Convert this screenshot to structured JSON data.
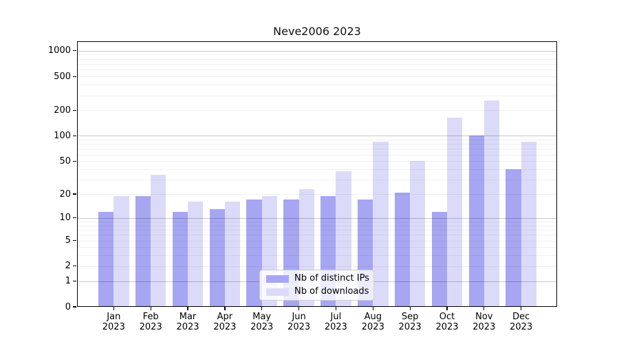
{
  "title": "Neve2006 2023",
  "colors": {
    "bar_distinct_ips": "#a6a6f2",
    "bar_downloads": "#dbdbf9",
    "grid_major": "rgba(0,0,0,0.22)",
    "grid_minor": "rgba(0,0,0,0.06)",
    "spine": "#000000",
    "legend_border": "#cccccc"
  },
  "legend": {
    "items": [
      {
        "label": "Nb of distinct IPs",
        "series_index": 0
      },
      {
        "label": "Nb of downloads",
        "series_index": 1
      }
    ],
    "position": "lower center"
  },
  "y_axis": {
    "scale": "log1p",
    "tick_values": [
      0,
      1,
      2,
      5,
      10,
      20,
      50,
      100,
      200,
      500,
      1000
    ],
    "tick_labels": [
      "0",
      "1",
      "2",
      "5",
      "10",
      "20",
      "50",
      "100",
      "200",
      "500",
      "1000"
    ],
    "major_grid_values": [
      1,
      10,
      100,
      1000
    ],
    "minor_grid_values": [
      2,
      3,
      4,
      5,
      6,
      7,
      8,
      9,
      20,
      30,
      40,
      50,
      60,
      70,
      80,
      90,
      200,
      300,
      400,
      500,
      600,
      700,
      800,
      900
    ]
  },
  "x_axis": {
    "tick_line1": [
      "Jan",
      "Feb",
      "Mar",
      "Apr",
      "May",
      "Jun",
      "Jul",
      "Aug",
      "Sep",
      "Oct",
      "Nov",
      "Dec"
    ],
    "tick_line2": "2023"
  },
  "chart_data": {
    "type": "bar",
    "title": "Neve2006 2023",
    "categories": [
      "Jan 2023",
      "Feb 2023",
      "Mar 2023",
      "Apr 2023",
      "May 2023",
      "Jun 2023",
      "Jul 2023",
      "Aug 2023",
      "Sep 2023",
      "Oct 2023",
      "Nov 2023",
      "Dec 2023"
    ],
    "series": [
      {
        "name": "Nb of distinct IPs",
        "color": "#a6a6f2",
        "values": [
          12,
          19,
          12,
          13,
          17,
          17,
          19,
          17,
          21,
          12,
          100,
          40
        ]
      },
      {
        "name": "Nb of downloads",
        "color": "#dbdbf9",
        "values": [
          19,
          34,
          16,
          16,
          19,
          23,
          38,
          85,
          50,
          165,
          260,
          85
        ]
      }
    ],
    "xlabel": "",
    "ylabel": "",
    "ylim": [
      0,
      1290
    ],
    "yticks": [
      0,
      1,
      2,
      5,
      10,
      20,
      50,
      100,
      200,
      500,
      1000
    ],
    "grid": true,
    "legend_position": "lower center"
  }
}
